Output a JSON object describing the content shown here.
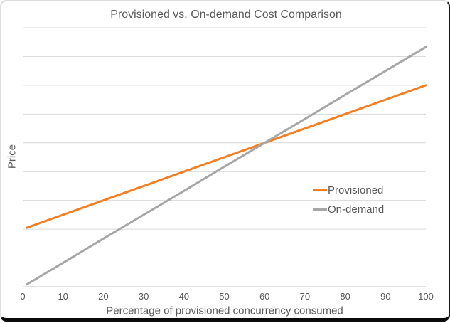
{
  "chart_data": {
    "type": "line",
    "title": "Provisioned vs. On-demand Cost Comparison",
    "xlabel": "Percentage of provisioned concurrency consumed",
    "ylabel": "Price",
    "xlim": [
      0,
      100
    ],
    "ylim": [
      0,
      9
    ],
    "x_ticks": [
      0,
      10,
      20,
      30,
      40,
      50,
      60,
      70,
      80,
      90,
      100
    ],
    "y_tick_labels_visible": false,
    "grid": "horizontal",
    "gridline_units": [
      0,
      1,
      2,
      3,
      4,
      5,
      6,
      7,
      8,
      9
    ],
    "legend_position": "center-right",
    "x": [
      1,
      10,
      20,
      30,
      40,
      50,
      60,
      70,
      80,
      90,
      100
    ],
    "series": [
      {
        "name": "Provisioned",
        "color": "#F57E20",
        "values": [
          2.05,
          2.5,
          3.0,
          3.5,
          4.0,
          4.5,
          5.0,
          5.5,
          6.0,
          6.5,
          7.0
        ]
      },
      {
        "name": "On-demand",
        "color": "#A6A6A6",
        "values": [
          0.08,
          0.83,
          1.67,
          2.5,
          3.33,
          4.17,
          5.0,
          5.83,
          6.67,
          7.5,
          8.33
        ]
      }
    ]
  },
  "style": {
    "gridline_color": "#D9D9D9",
    "axis_line_color": "#C6C6C6",
    "text_color": "#595959"
  }
}
